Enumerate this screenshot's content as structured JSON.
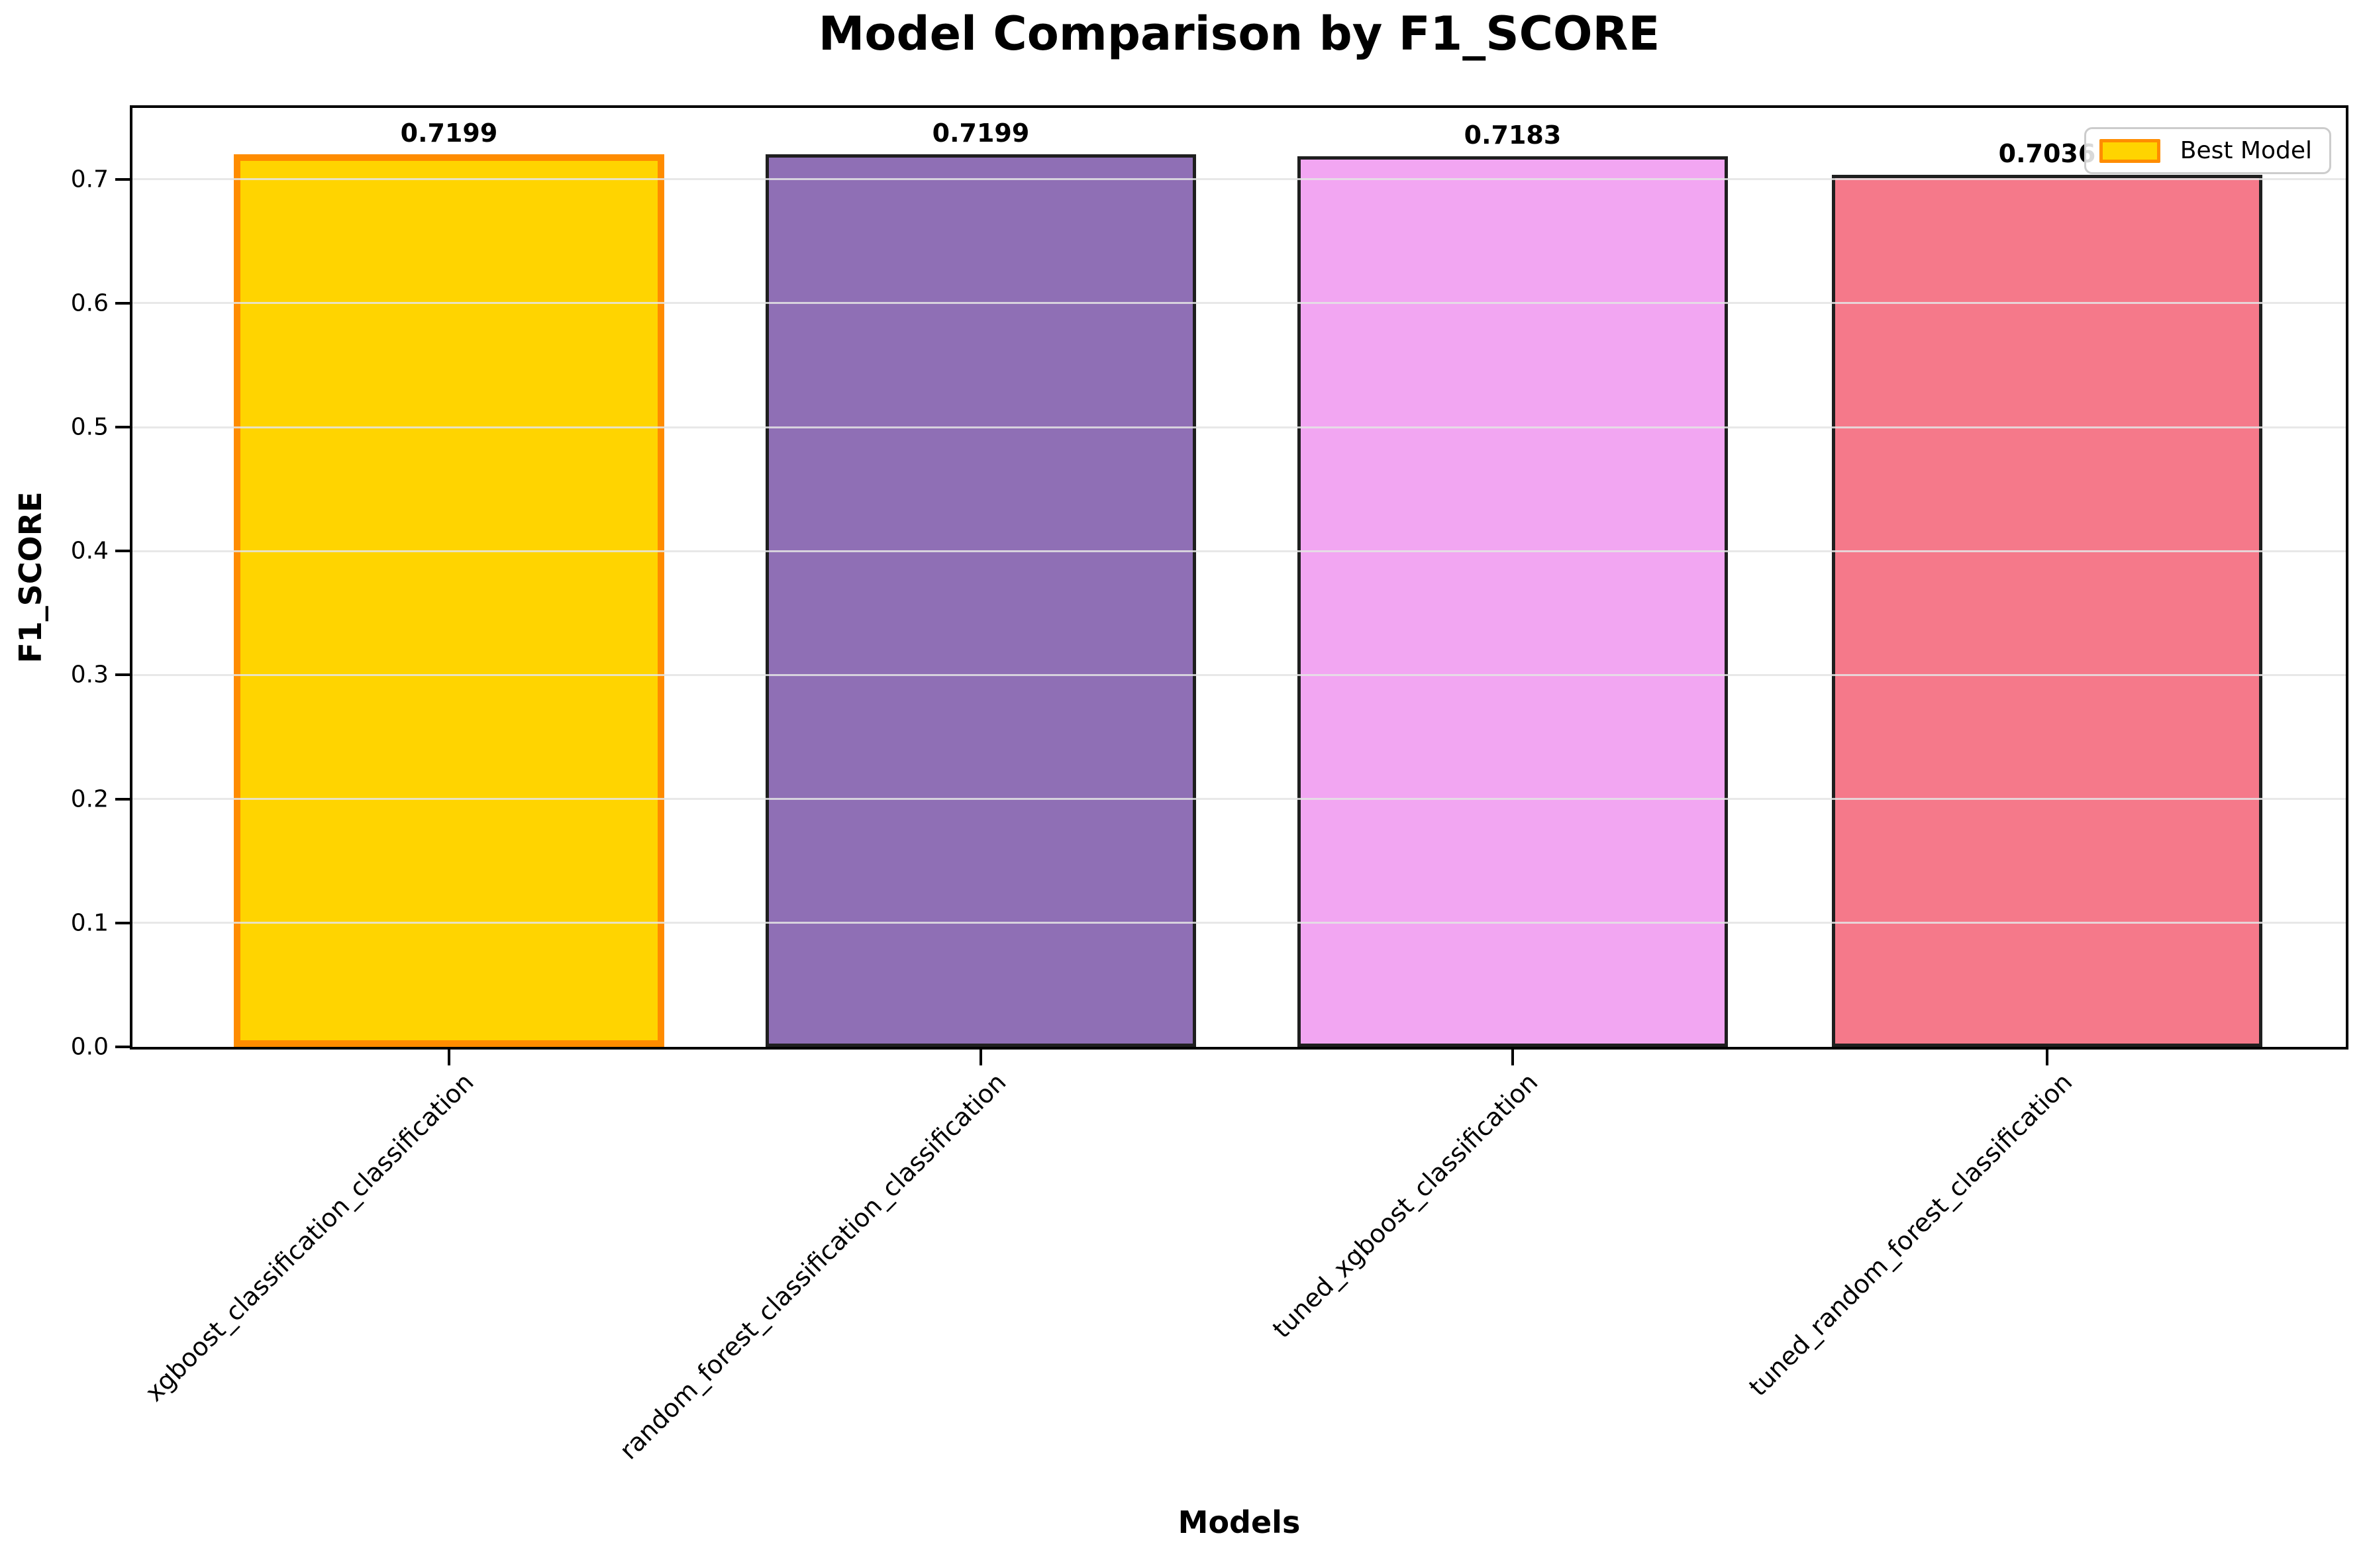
{
  "chart_data": {
    "type": "bar",
    "title": "Model Comparison by F1_SCORE",
    "xlabel": "Models",
    "ylabel": "F1_SCORE",
    "categories": [
      "xgboost_classification_classification",
      "random_forest_classification_classification",
      "tuned_xgboost_classification",
      "tuned_random_forest_classification"
    ],
    "values": [
      0.7199,
      0.7199,
      0.7183,
      0.7036
    ],
    "value_labels": [
      "0.7199",
      "0.7199",
      "0.7183",
      "0.7036"
    ],
    "bar_colors": [
      "#FFD400",
      "#8F6FB5",
      "#F2A6F2",
      "#F5798A"
    ],
    "bar_edge_colors": [
      "#FF8C00",
      "#1F1F1F",
      "#1F1F1F",
      "#1F1F1F"
    ],
    "best_model_index": 0,
    "ylim": [
      0,
      0.7575
    ],
    "yticks": [
      "0.0",
      "0.1",
      "0.2",
      "0.3",
      "0.4",
      "0.5",
      "0.6",
      "0.7"
    ],
    "grid": "horizontal",
    "background_color": "#ffffff",
    "grid_color": "#e4e4e4",
    "legend": {
      "label": "Best Model",
      "swatch_fill": "#FFD400",
      "swatch_edge": "#FF8C00",
      "position": "upper right"
    }
  }
}
